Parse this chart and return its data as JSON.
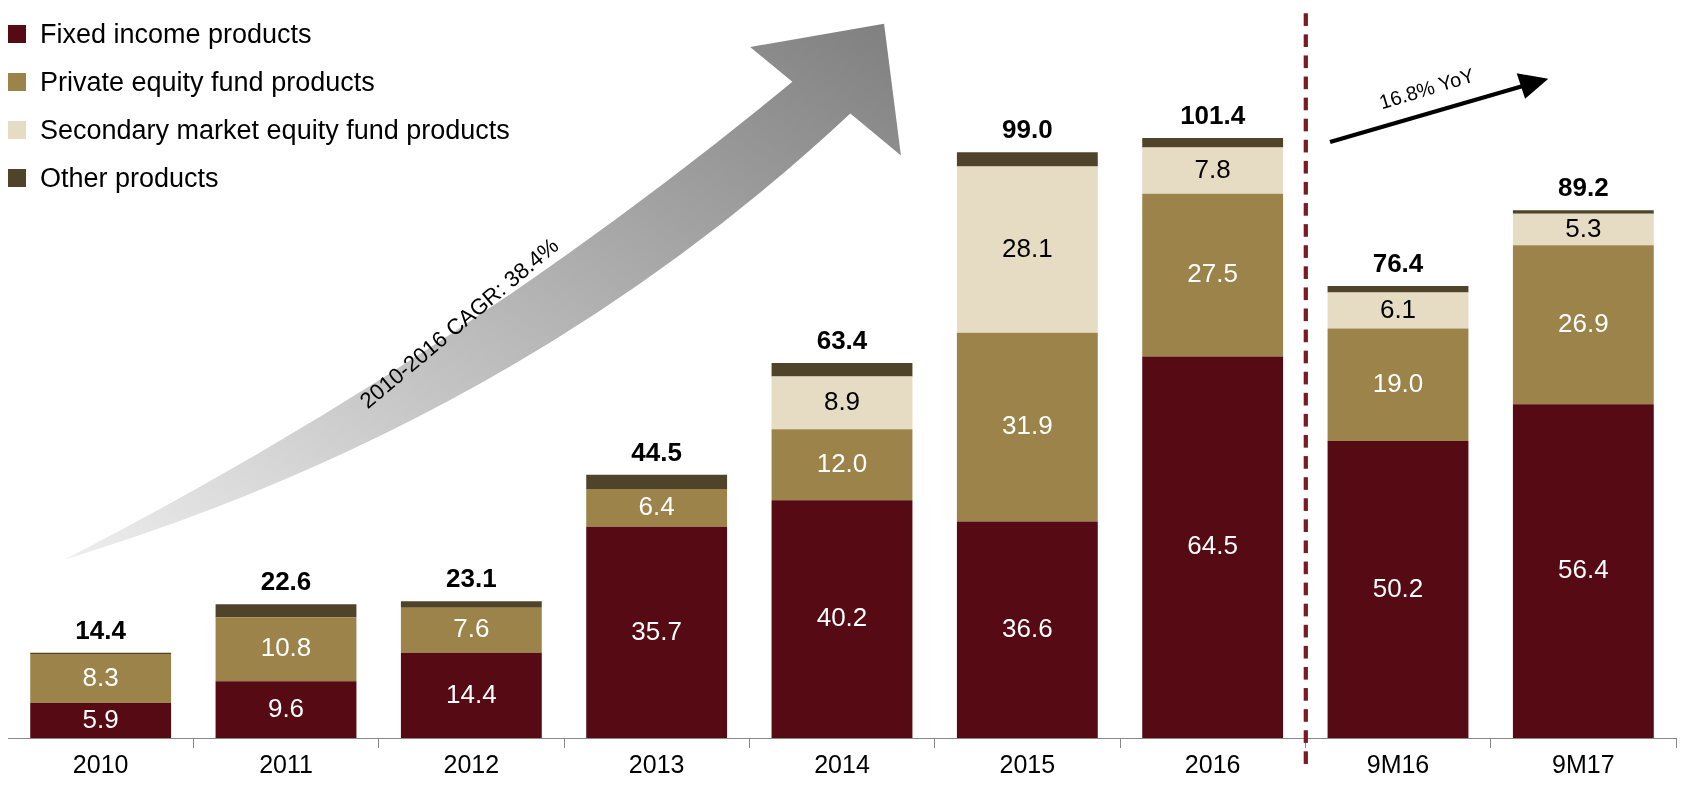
{
  "chart_data": {
    "type": "bar",
    "stacked": true,
    "legend": "top left",
    "categories": [
      "2010",
      "2011",
      "2012",
      "2013",
      "2014",
      "2015",
      "2016",
      "9M16",
      "9M17"
    ],
    "series": [
      {
        "name": "Fixed income products",
        "color": "#560a13",
        "values": [
          5.9,
          9.6,
          14.4,
          35.7,
          40.2,
          36.6,
          64.5,
          50.2,
          56.4
        ],
        "value_labels": [
          "5.9",
          "9.6",
          "14.4",
          "35.7",
          "40.2",
          "36.6",
          "64.5",
          "50.2",
          "56.4"
        ]
      },
      {
        "name": "Private equity fund products",
        "color": "#9c834a",
        "values": [
          8.3,
          10.8,
          7.6,
          6.4,
          12.0,
          31.9,
          27.5,
          19.0,
          26.9
        ],
        "value_labels": [
          "8.3",
          "10.8",
          "7.6",
          "6.4",
          "12.0",
          "31.9",
          "27.5",
          "19.0",
          "26.9"
        ]
      },
      {
        "name": "Secondary market equity fund products",
        "color": "#e6dbc3",
        "values": [
          null,
          null,
          null,
          null,
          8.9,
          28.1,
          7.8,
          6.1,
          5.3
        ],
        "value_labels": [
          null,
          null,
          null,
          null,
          "8.9",
          "28.1",
          "7.8",
          "6.1",
          "5.3"
        ]
      },
      {
        "name": "Other products",
        "color": "#4f4429",
        "values": [
          0.2,
          2.2,
          1.1,
          2.4,
          2.3,
          2.4,
          1.6,
          1.1,
          0.6
        ]
      }
    ],
    "totals": [
      "14.4",
      "22.6",
      "23.1",
      "44.5",
      "63.4",
      "99.0",
      "101.4",
      "76.4",
      "89.2"
    ],
    "annotations": [
      "2010-2016 CAGR: 38.4%",
      "16.8% YoY"
    ]
  }
}
